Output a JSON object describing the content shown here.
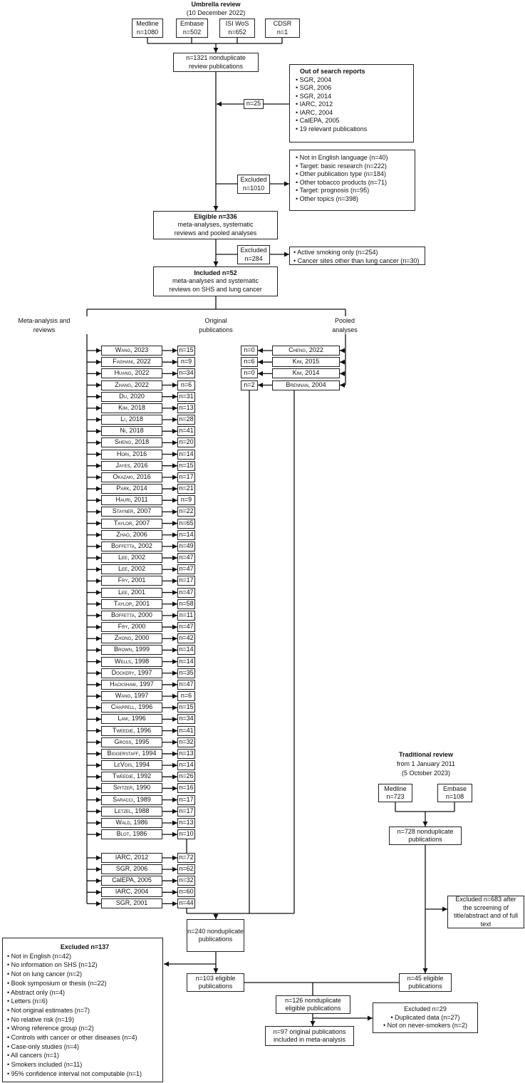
{
  "umbrella": {
    "title": "Umbrella review",
    "date": "(10 December 2022)",
    "sources": [
      {
        "name": "Medline",
        "n": "n=1080"
      },
      {
        "name": "Embase",
        "n": "n=502"
      },
      {
        "name": "ISI WoS",
        "n": "n=652"
      },
      {
        "name": "CDSR",
        "n": "n=1"
      }
    ],
    "nonduplicate": "n=1321 nonduplicate review publications",
    "out_of_search": {
      "title": "Out of search reports",
      "items": [
        "SGR, 2004",
        "SGR, 2006",
        "SGR, 2014",
        "IARC, 2012",
        "IARC, 2004",
        "CalEPA, 2005",
        "19 relevant publications"
      ],
      "n": "n=25"
    },
    "excluded1": {
      "label": "Excluded",
      "n": "n=1010",
      "items": [
        "Not in English language (n=40)",
        "Target: basic research (n=222)",
        "Other publication type (n=184)",
        "Other tobacco products (n=71)",
        "Target: prognosis (n=95)",
        "Other topics (n=398)"
      ]
    },
    "eligible": {
      "title": "Eligible n=336",
      "text": "meta-analyses, systematic reviews and pooled analyses"
    },
    "excluded2": {
      "label": "Excluded",
      "n": "n=284",
      "items": [
        "Active smoking only (n=254)",
        "Cancer sites other than lung cancer (n=30)"
      ]
    },
    "included": {
      "title": "Included n=52",
      "text": "meta-analyses and systematic reviews on SHS and lung cancer"
    }
  },
  "columns": {
    "meta": "Meta-analysis and reviews",
    "original": "Original publications",
    "pooled": "Pooled analyses"
  },
  "meta_reviews": [
    {
      "label": "Wang, 2023",
      "n": "n=15"
    },
    {
      "label": "Faghani, 2022",
      "n": "n=9"
    },
    {
      "label": "Huang, 2022",
      "n": "n=34"
    },
    {
      "label": "Zhang, 2022",
      "n": "n=6"
    },
    {
      "label": "Du, 2020",
      "n": "n=31"
    },
    {
      "label": "Kim, 2018",
      "n": "n=13"
    },
    {
      "label": "Li, 2018",
      "n": "n=28"
    },
    {
      "label": "Ni, 2018",
      "n": "n=41"
    },
    {
      "label": "Sheng, 2018",
      "n": "n=20"
    },
    {
      "label": "Hori, 2016",
      "n": "n=14"
    },
    {
      "label": "Jayes, 2016",
      "n": "n=15"
    },
    {
      "label": "Okazaki, 2016",
      "n": "n=17"
    },
    {
      "label": "Park, 2014",
      "n": "n=21"
    },
    {
      "label": "Hauri, 2011",
      "n": "n=9"
    },
    {
      "label": "Stayner, 2007",
      "n": "n=22"
    },
    {
      "label": "Taylor, 2007",
      "n": "n=65"
    },
    {
      "label": "Zhao, 2006",
      "n": "n=14"
    },
    {
      "label": "Boffetta, 2002",
      "n": "n=49"
    },
    {
      "label": "Lee, 2002",
      "n": "n=47"
    },
    {
      "label": "Lee, 2002",
      "n": "n=47"
    },
    {
      "label": "Fry, 2001",
      "n": "n=17"
    },
    {
      "label": "Lee, 2001",
      "n": "n=47"
    },
    {
      "label": "Taylor, 2001",
      "n": "n=58"
    },
    {
      "label": "Boffetta, 2000",
      "n": "n=11"
    },
    {
      "label": "Fry, 2000",
      "n": "n=47"
    },
    {
      "label": "Zhong, 2000",
      "n": "n=42"
    },
    {
      "label": "Brown, 1999",
      "n": "n=14"
    },
    {
      "label": "Wells, 1998",
      "n": "n=14"
    },
    {
      "label": "Dockery, 1997",
      "n": "n=35"
    },
    {
      "label": "Hackshaw, 1997",
      "n": "n=47"
    },
    {
      "label": "Wang, 1997",
      "n": "n=6"
    },
    {
      "label": "Chappell, 1996",
      "n": "n=15"
    },
    {
      "label": "Law, 1996",
      "n": "n=34"
    },
    {
      "label": "Tweedie, 1996",
      "n": "n=41"
    },
    {
      "label": "Gross, 1995",
      "n": "n=32"
    },
    {
      "label": "Biggerstaff, 1994",
      "n": "n=13"
    },
    {
      "label": "LeVois, 1994",
      "n": "n=14"
    },
    {
      "label": "Tweedie, 1992",
      "n": "n=26"
    },
    {
      "label": "Spitzer, 1990",
      "n": "n=16"
    },
    {
      "label": "Saracci, 1989",
      "n": "n=17"
    },
    {
      "label": "Letzel, 1988",
      "n": "n=17"
    },
    {
      "label": "Wald, 1986",
      "n": "n=13"
    },
    {
      "label": "Blot, 1986",
      "n": "n=10"
    }
  ],
  "reports": [
    {
      "label": "IARC, 2012",
      "n": "n=72"
    },
    {
      "label": "SGR, 2006",
      "n": "n=62"
    },
    {
      "label": "CalEPA, 2005",
      "n": "n=32"
    },
    {
      "label": "IARC, 2004",
      "n": "n=60"
    },
    {
      "label": "SGR, 2001",
      "n": "n=44"
    }
  ],
  "pooled": [
    {
      "label": "Cheng, 2022",
      "n": "n=0"
    },
    {
      "label": "Kim, 2015",
      "n": "n=6"
    },
    {
      "label": "Kim, 2014",
      "n": "n=0"
    },
    {
      "label": "Brennan, 2004",
      "n": "n=2"
    }
  ],
  "merge": {
    "n240": "n=240 nonduplicate publications",
    "n103": "n=103 eligible publications",
    "excluded137": {
      "title": "Excluded n=137",
      "items": [
        "Not in English (n=42)",
        "No information on SHS (n=12)",
        "Not on lung cancer (n=2)",
        "Book symposium or thesis (n=22)",
        "Abstract only (n=4)",
        "Letters (n=6)",
        "Not original estimates (n=7)",
        "No relative risk (n=19)",
        "Wrong reference group (n=2)",
        "Controls with cancer or other diseases (n=4)",
        "Case-only studies (n=4)",
        "All cancers (n=1)",
        "Smokers included (n=11)",
        "95% confidence interval not computable (n=1)"
      ]
    },
    "n126": "n=126 nonduplicate eligible publications",
    "n97": "n=97 original publications included in meta-analysis",
    "excluded29": {
      "title": "Excluded n=29",
      "items": [
        "Duplicated data (n=27)",
        "Not on never-smokers (n=2)"
      ]
    }
  },
  "traditional": {
    "title": "Traditional review",
    "from": "from 1 January 2011",
    "date": "(5 October 2023)",
    "sources": [
      {
        "name": "Medline",
        "n": "n=723"
      },
      {
        "name": "Embase",
        "n": "n=108"
      }
    ],
    "nonduplicate": "n=728 nonduplicate publications",
    "excluded": "Excluded n=683 after the screening of title/abstract and of full text",
    "eligible": "n=45 eligible publications"
  }
}
